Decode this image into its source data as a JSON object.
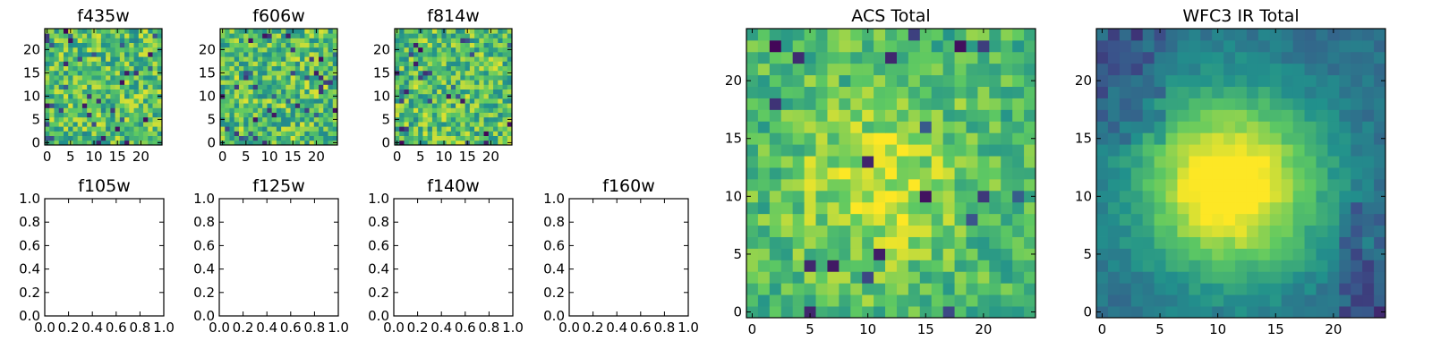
{
  "figure": {
    "background": "#ffffff",
    "colormap": "viridis",
    "colormap_stops": [
      "#440154",
      "#3b528b",
      "#21918c",
      "#5ec962",
      "#fde725"
    ]
  },
  "chart_data": [
    {
      "id": "f435w",
      "type": "heatmap",
      "title": "f435w",
      "grid_size": 25,
      "xlim": [
        -0.5,
        24.5
      ],
      "ylim": [
        -0.5,
        24.5
      ],
      "xticks": [
        "0",
        "5",
        "10",
        "15",
        "20"
      ],
      "yticks": [
        "0",
        "5",
        "10",
        "15",
        "20"
      ],
      "pattern": "noise",
      "seed": 11,
      "value_range": [
        0,
        1
      ]
    },
    {
      "id": "f606w",
      "type": "heatmap",
      "title": "f606w",
      "grid_size": 25,
      "xlim": [
        -0.5,
        24.5
      ],
      "ylim": [
        -0.5,
        24.5
      ],
      "xticks": [
        "0",
        "5",
        "10",
        "15",
        "20"
      ],
      "yticks": [
        "0",
        "5",
        "10",
        "15",
        "20"
      ],
      "pattern": "noise",
      "seed": 23,
      "value_range": [
        0,
        1
      ]
    },
    {
      "id": "f814w",
      "type": "heatmap",
      "title": "f814w",
      "grid_size": 25,
      "xlim": [
        -0.5,
        24.5
      ],
      "ylim": [
        -0.5,
        24.5
      ],
      "xticks": [
        "0",
        "5",
        "10",
        "15",
        "20"
      ],
      "yticks": [
        "0",
        "5",
        "10",
        "15",
        "20"
      ],
      "pattern": "noise",
      "seed": 37,
      "value_range": [
        0,
        1
      ]
    },
    {
      "id": "f105w",
      "type": "empty",
      "title": "f105w",
      "xlim": [
        0,
        1
      ],
      "ylim": [
        0,
        1
      ],
      "xticks": [
        "0.0",
        "0.2",
        "0.4",
        "0.6",
        "0.8",
        "1.0"
      ],
      "yticks": [
        "0.0",
        "0.2",
        "0.4",
        "0.6",
        "0.8",
        "1.0"
      ]
    },
    {
      "id": "f125w",
      "type": "empty",
      "title": "f125w",
      "xlim": [
        0,
        1
      ],
      "ylim": [
        0,
        1
      ],
      "xticks": [
        "0.0",
        "0.2",
        "0.4",
        "0.6",
        "0.8",
        "1.0"
      ],
      "yticks": [
        "0.0",
        "0.2",
        "0.4",
        "0.6",
        "0.8",
        "1.0"
      ]
    },
    {
      "id": "f140w",
      "type": "empty",
      "title": "f140w",
      "xlim": [
        0,
        1
      ],
      "ylim": [
        0,
        1
      ],
      "xticks": [
        "0.0",
        "0.2",
        "0.4",
        "0.6",
        "0.8",
        "1.0"
      ],
      "yticks": [
        "0.0",
        "0.2",
        "0.4",
        "0.6",
        "0.8",
        "1.0"
      ]
    },
    {
      "id": "f160w",
      "type": "empty",
      "title": "f160w",
      "xlim": [
        0,
        1
      ],
      "ylim": [
        0,
        1
      ],
      "xticks": [
        "0.0",
        "0.2",
        "0.4",
        "0.6",
        "0.8",
        "1.0"
      ],
      "yticks": [
        "0.0",
        "0.2",
        "0.4",
        "0.6",
        "0.8",
        "1.0"
      ]
    },
    {
      "id": "acs-total",
      "type": "heatmap",
      "title": "ACS Total",
      "grid_size": 25,
      "xlim": [
        -0.5,
        24.5
      ],
      "ylim": [
        -0.5,
        24.5
      ],
      "xticks": [
        "0",
        "5",
        "10",
        "15",
        "20"
      ],
      "yticks": [
        "0",
        "5",
        "10",
        "15",
        "20"
      ],
      "pattern": "noise_with_central_peak",
      "seed": 53,
      "value_range": [
        0,
        1
      ],
      "peak": {
        "x": 11,
        "y": 11,
        "sigma": 5,
        "amplitude": 0.25
      }
    },
    {
      "id": "wfc3-ir-total",
      "type": "heatmap",
      "title": "WFC3 IR Total",
      "grid_size": 25,
      "xlim": [
        -0.5,
        24.5
      ],
      "ylim": [
        -0.5,
        24.5
      ],
      "xticks": [
        "0",
        "5",
        "10",
        "15",
        "20"
      ],
      "yticks": [
        "0",
        "5",
        "10",
        "15",
        "20"
      ],
      "pattern": "smooth_blob",
      "seed": 71,
      "value_range": [
        0,
        1
      ],
      "peak": {
        "x": 11,
        "y": 11,
        "sigma": 5.5,
        "amplitude": 0.75
      }
    }
  ]
}
